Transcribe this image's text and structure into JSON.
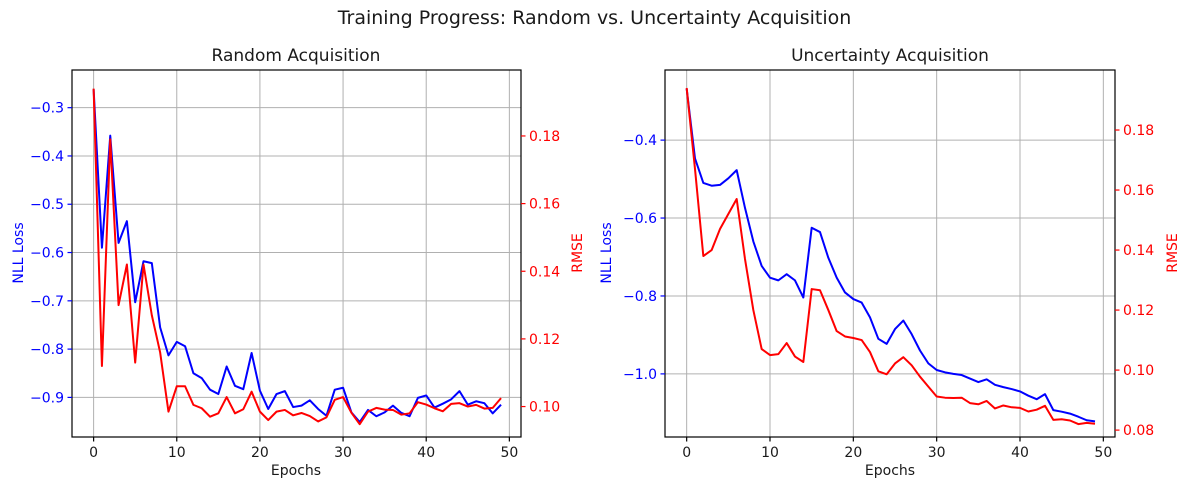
{
  "figure": {
    "title": "Training Progress: Random vs. Uncertainty Acquisition",
    "background": "#ffffff",
    "colors": {
      "nll": "#0000ff",
      "rmse": "#ff0000",
      "grid": "#b0b0b0",
      "spine": "#000000",
      "text": "#1a1a1a"
    }
  },
  "chart_data": [
    {
      "type": "line",
      "title": "Random Acquisition",
      "xlabel": "Epochs",
      "ylabel_left": "NLL Loss",
      "ylabel_right": "RMSE",
      "xlim": [
        -2.6,
        51.4
      ],
      "x_ticks": [
        0,
        10,
        20,
        30,
        40,
        50
      ],
      "nll_ylim": [
        -0.982,
        -0.222
      ],
      "nll_ticks": [
        {
          "v": -0.3,
          "label": "−0.3"
        },
        {
          "v": -0.4,
          "label": "−0.4"
        },
        {
          "v": -0.5,
          "label": "−0.5"
        },
        {
          "v": -0.6,
          "label": "−0.6"
        },
        {
          "v": -0.7,
          "label": "−0.7"
        },
        {
          "v": -0.8,
          "label": "−0.8"
        },
        {
          "v": -0.9,
          "label": "−0.9"
        }
      ],
      "rmse_ylim": [
        0.091,
        0.1995
      ],
      "rmse_ticks": [
        {
          "v": 0.18,
          "label": "0.18"
        },
        {
          "v": 0.16,
          "label": "0.16"
        },
        {
          "v": 0.14,
          "label": "0.14"
        },
        {
          "v": 0.12,
          "label": "0.12"
        },
        {
          "v": 0.1,
          "label": "0.10"
        }
      ],
      "x": [
        0,
        1,
        2,
        3,
        4,
        5,
        6,
        7,
        8,
        9,
        10,
        11,
        12,
        13,
        14,
        15,
        16,
        17,
        18,
        19,
        20,
        21,
        22,
        23,
        24,
        25,
        26,
        27,
        28,
        29,
        30,
        31,
        32,
        33,
        34,
        35,
        36,
        37,
        38,
        39,
        40,
        41,
        42,
        43,
        44,
        45,
        46,
        47,
        48,
        49
      ],
      "series": [
        {
          "name": "NLL Loss",
          "axis": "left",
          "color": "#0000ff",
          "values": [
            -0.262,
            -0.59,
            -0.358,
            -0.58,
            -0.535,
            -0.703,
            -0.618,
            -0.622,
            -0.755,
            -0.813,
            -0.785,
            -0.794,
            -0.85,
            -0.86,
            -0.884,
            -0.893,
            -0.836,
            -0.876,
            -0.883,
            -0.808,
            -0.886,
            -0.924,
            -0.893,
            -0.887,
            -0.92,
            -0.917,
            -0.906,
            -0.924,
            -0.938,
            -0.884,
            -0.88,
            -0.931,
            -0.951,
            -0.926,
            -0.939,
            -0.931,
            -0.917,
            -0.932,
            -0.939,
            -0.901,
            -0.896,
            -0.921,
            -0.913,
            -0.904,
            -0.887,
            -0.915,
            -0.908,
            -0.912,
            -0.933,
            -0.915
          ]
        },
        {
          "name": "RMSE",
          "axis": "right",
          "color": "#ff0000",
          "values": [
            0.194,
            0.112,
            0.179,
            0.13,
            0.142,
            0.113,
            0.142,
            0.127,
            0.116,
            0.0985,
            0.106,
            0.106,
            0.1005,
            0.0995,
            0.097,
            0.098,
            0.1028,
            0.098,
            0.0992,
            0.1044,
            0.0985,
            0.096,
            0.0985,
            0.099,
            0.0974,
            0.0981,
            0.0972,
            0.0956,
            0.0968,
            0.102,
            0.1028,
            0.0982,
            0.0948,
            0.0985,
            0.0996,
            0.0991,
            0.099,
            0.0976,
            0.098,
            0.1013,
            0.1006,
            0.0995,
            0.0986,
            0.1008,
            0.101,
            0.1,
            0.1005,
            0.0994,
            0.0996,
            0.1025
          ]
        }
      ]
    },
    {
      "type": "line",
      "title": "Uncertainty Acquisition",
      "xlabel": "Epochs",
      "ylabel_left": "NLL Loss",
      "ylabel_right": "RMSE",
      "xlim": [
        -2.6,
        51.4
      ],
      "x_ticks": [
        0,
        10,
        20,
        30,
        40,
        50
      ],
      "nll_ylim": [
        -1.162,
        -0.22
      ],
      "nll_ticks": [
        {
          "v": -0.4,
          "label": "−0.4"
        },
        {
          "v": -0.6,
          "label": "−0.6"
        },
        {
          "v": -0.8,
          "label": "−0.8"
        },
        {
          "v": -1.0,
          "label": "−1.0"
        }
      ],
      "rmse_ylim": [
        0.0777,
        0.2
      ],
      "rmse_ticks": [
        {
          "v": 0.18,
          "label": "0.18"
        },
        {
          "v": 0.16,
          "label": "0.16"
        },
        {
          "v": 0.14,
          "label": "0.14"
        },
        {
          "v": 0.12,
          "label": "0.12"
        },
        {
          "v": 0.1,
          "label": "0.10"
        },
        {
          "v": 0.08,
          "label": "0.08"
        }
      ],
      "x": [
        0,
        1,
        2,
        3,
        4,
        5,
        6,
        7,
        8,
        9,
        10,
        11,
        12,
        13,
        14,
        15,
        16,
        17,
        18,
        19,
        20,
        21,
        22,
        23,
        24,
        25,
        26,
        27,
        28,
        29,
        30,
        31,
        32,
        33,
        34,
        35,
        36,
        37,
        38,
        39,
        40,
        41,
        42,
        43,
        44,
        45,
        46,
        47,
        48,
        49
      ],
      "series": [
        {
          "name": "NLL Loss",
          "axis": "left",
          "color": "#0000ff",
          "values": [
            -0.268,
            -0.447,
            -0.51,
            -0.517,
            -0.515,
            -0.498,
            -0.477,
            -0.574,
            -0.66,
            -0.723,
            -0.753,
            -0.76,
            -0.744,
            -0.76,
            -0.804,
            -0.625,
            -0.636,
            -0.702,
            -0.753,
            -0.791,
            -0.808,
            -0.817,
            -0.855,
            -0.91,
            -0.923,
            -0.885,
            -0.863,
            -0.898,
            -0.94,
            -0.973,
            -0.99,
            -0.996,
            -1.0,
            -1.003,
            -1.012,
            -1.021,
            -1.014,
            -1.028,
            -1.034,
            -1.039,
            -1.045,
            -1.056,
            -1.065,
            -1.052,
            -1.093,
            -1.097,
            -1.102,
            -1.11,
            -1.119,
            -1.122
          ]
        },
        {
          "name": "RMSE",
          "axis": "right",
          "color": "#ff0000",
          "values": [
            0.194,
            0.167,
            0.138,
            0.14,
            0.147,
            0.152,
            0.157,
            0.137,
            0.12,
            0.107,
            0.105,
            0.1053,
            0.109,
            0.1045,
            0.1027,
            0.127,
            0.1266,
            0.12,
            0.113,
            0.1112,
            0.1107,
            0.11,
            0.106,
            0.0996,
            0.0986,
            0.1022,
            0.1043,
            0.1016,
            0.0978,
            0.0945,
            0.0912,
            0.0908,
            0.0907,
            0.0908,
            0.089,
            0.0886,
            0.0897,
            0.0872,
            0.0882,
            0.0876,
            0.0874,
            0.0862,
            0.0868,
            0.0881,
            0.0834,
            0.0836,
            0.0832,
            0.082,
            0.0824,
            0.0821
          ]
        }
      ]
    }
  ]
}
